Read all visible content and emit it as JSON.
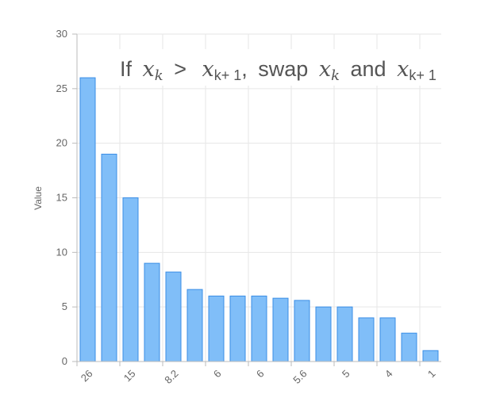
{
  "chart_data": {
    "type": "bar",
    "ylabel": "Value",
    "ylim": [
      0,
      30
    ],
    "yticks": [
      0,
      5,
      10,
      15,
      20,
      25,
      30
    ],
    "values": [
      26,
      19,
      15,
      9,
      8.2,
      6.6,
      6,
      6,
      6,
      5.8,
      5.6,
      5,
      5,
      4,
      4,
      2.6,
      1
    ],
    "tick_labels": [
      "26",
      "15",
      "8.2",
      "6",
      "6",
      "5.6",
      "5",
      "4",
      "1"
    ],
    "grid": true,
    "colors": {
      "bar_fill": "#80bef8",
      "bar_stroke": "#3a8ee6",
      "grid": "#e6e6e6",
      "axis": "#bbbbbb"
    },
    "annotation": {
      "if": "If",
      "var": "x",
      "k": "k",
      "k_plus_1": "k+ 1",
      "gt": ">",
      "comma": ",",
      "swap": "swap",
      "and": "and"
    }
  }
}
